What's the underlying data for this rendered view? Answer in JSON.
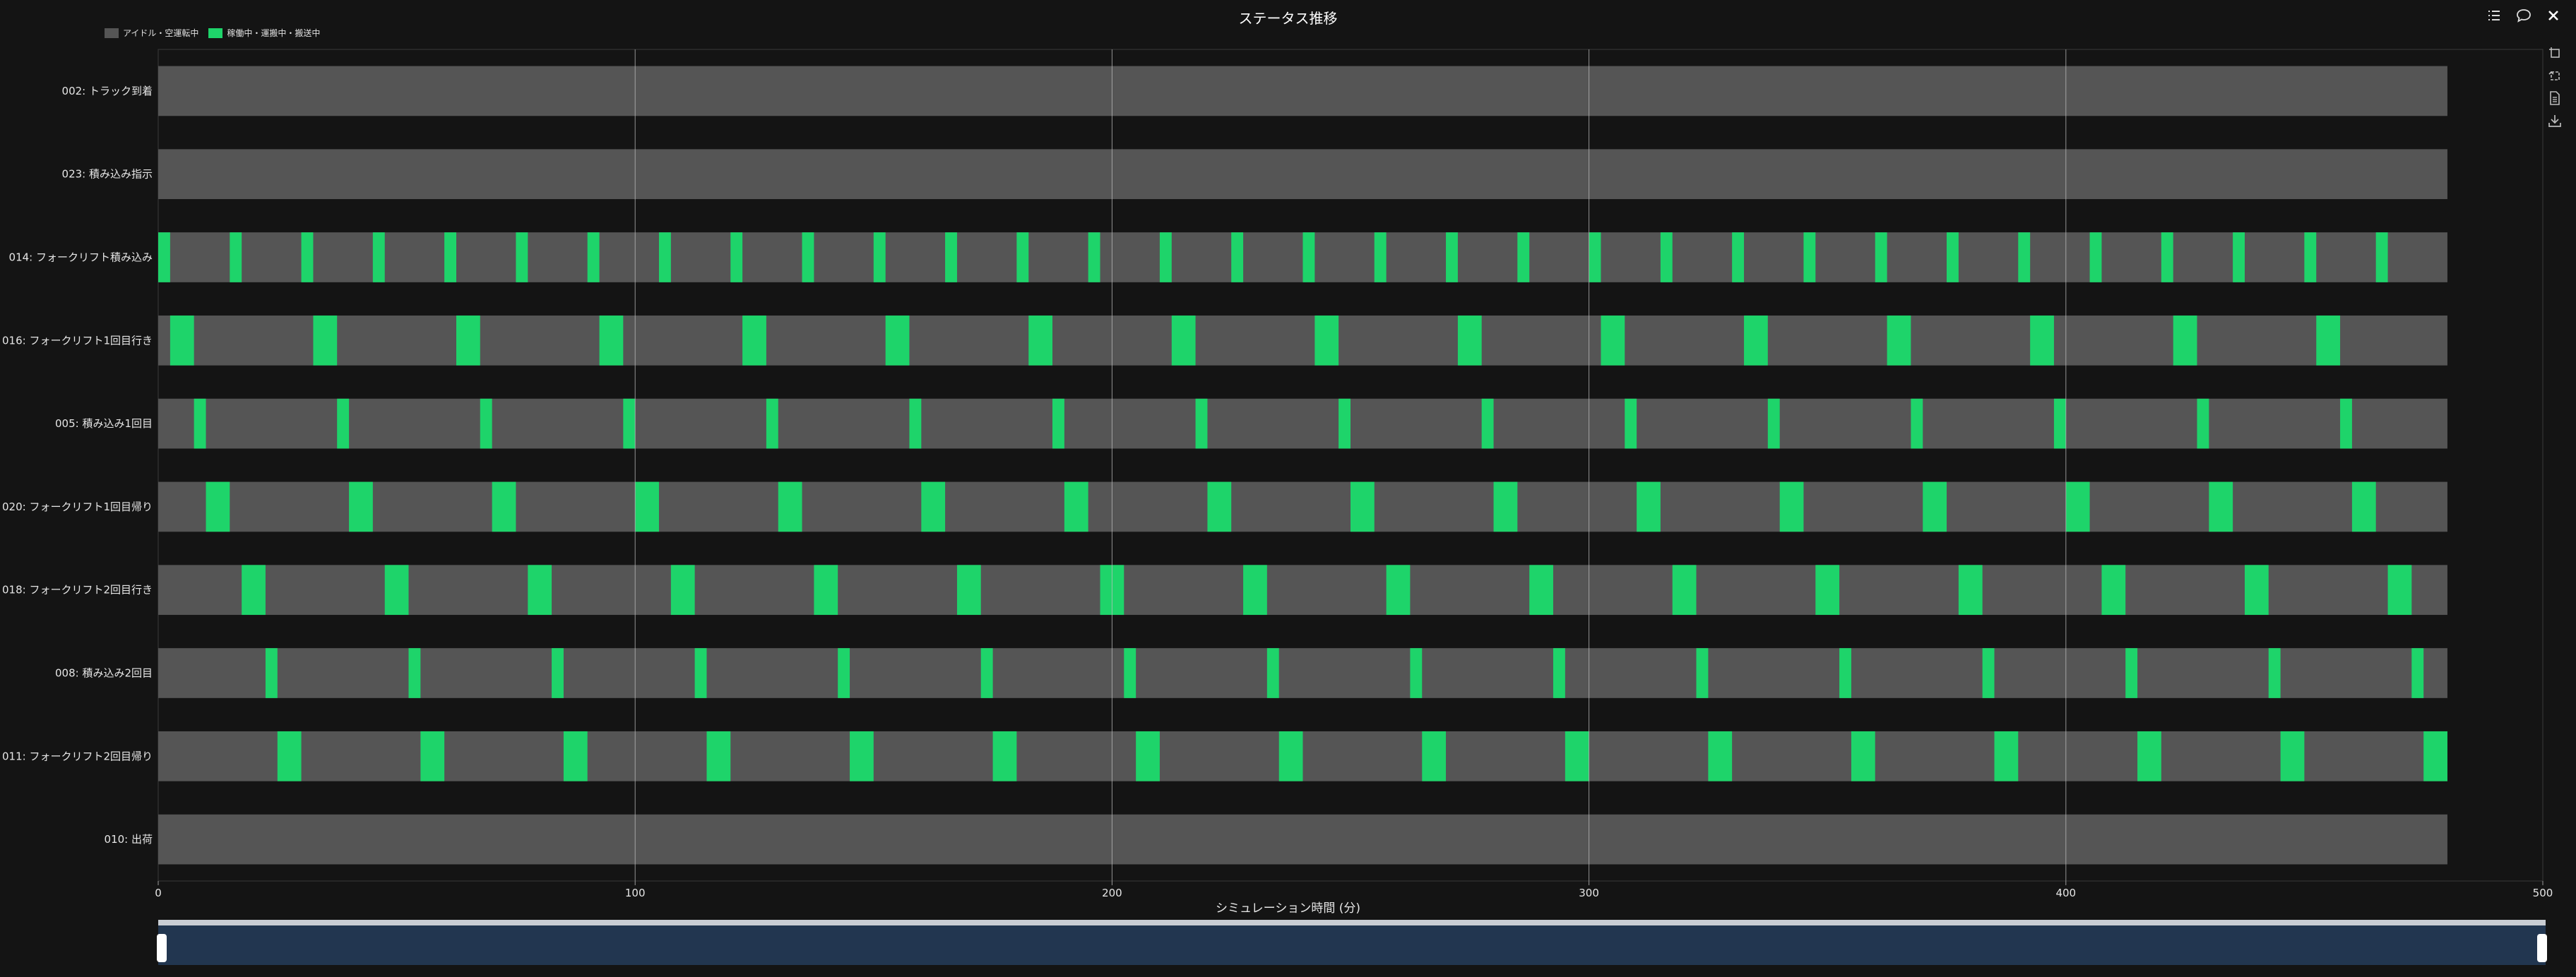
{
  "window": {
    "title": "ステータス推移"
  },
  "legend": [
    {
      "label": "アイドル・空運転中",
      "color": "#555555"
    },
    {
      "label": "稼働中・運搬中・搬送中",
      "color": "#1ed46a"
    }
  ],
  "icons": {
    "top": [
      "list-icon",
      "comment-icon",
      "close-icon"
    ],
    "side": [
      "select-icon",
      "lasso-icon",
      "document-icon",
      "download-icon"
    ]
  },
  "chart_data": {
    "type": "gantt",
    "title": "ステータス推移",
    "xlabel": "シミュレーション時間 (分)",
    "ylabel": "",
    "xlim": [
      0,
      500
    ],
    "xticks": [
      0,
      100,
      200,
      300,
      400,
      500
    ],
    "grid": "vertical",
    "legend_position": "top-left",
    "sim_end": 480,
    "rows": [
      {
        "label": "002: トラック到着",
        "active": []
      },
      {
        "label": "023: 積み込み指示",
        "active": []
      },
      {
        "label": "014: フォークリフト積み込み",
        "active": [
          [
            0,
            2.5
          ],
          [
            15,
            17.5
          ],
          [
            30,
            32.5
          ],
          [
            45,
            47.5
          ],
          [
            60,
            62.5
          ],
          [
            75,
            77.5
          ],
          [
            90,
            92.5
          ],
          [
            105,
            107.5
          ],
          [
            120,
            122.5
          ],
          [
            135,
            137.5
          ],
          [
            150,
            152.5
          ],
          [
            165,
            167.5
          ],
          [
            180,
            182.5
          ],
          [
            195,
            197.5
          ],
          [
            210,
            212.5
          ],
          [
            225,
            227.5
          ],
          [
            240,
            242.5
          ],
          [
            255,
            257.5
          ],
          [
            270,
            272.5
          ],
          [
            285,
            287.5
          ],
          [
            300,
            302.5
          ],
          [
            315,
            317.5
          ],
          [
            330,
            332.5
          ],
          [
            345,
            347.5
          ],
          [
            360,
            362.5
          ],
          [
            375,
            377.5
          ],
          [
            390,
            392.5
          ],
          [
            405,
            407.5
          ],
          [
            420,
            422.5
          ],
          [
            435,
            437.5
          ],
          [
            450,
            452.5
          ],
          [
            465,
            467.5
          ]
        ]
      },
      {
        "label": "016: フォークリフト1回目行き",
        "active": [
          [
            2.5,
            7.5
          ],
          [
            32.5,
            37.5
          ],
          [
            62.5,
            67.5
          ],
          [
            92.5,
            97.5
          ],
          [
            122.5,
            127.5
          ],
          [
            152.5,
            157.5
          ],
          [
            182.5,
            187.5
          ],
          [
            212.5,
            217.5
          ],
          [
            242.5,
            247.5
          ],
          [
            272.5,
            277.5
          ],
          [
            302.5,
            307.5
          ],
          [
            332.5,
            337.5
          ],
          [
            362.5,
            367.5
          ],
          [
            392.5,
            397.5
          ],
          [
            422.5,
            427.5
          ],
          [
            452.5,
            457.5
          ]
        ]
      },
      {
        "label": "005: 積み込み1回目",
        "active": [
          [
            7.5,
            10
          ],
          [
            37.5,
            40
          ],
          [
            67.5,
            70
          ],
          [
            97.5,
            100
          ],
          [
            127.5,
            130
          ],
          [
            157.5,
            160
          ],
          [
            187.5,
            190
          ],
          [
            217.5,
            220
          ],
          [
            247.5,
            250
          ],
          [
            277.5,
            280
          ],
          [
            307.5,
            310
          ],
          [
            337.5,
            340
          ],
          [
            367.5,
            370
          ],
          [
            397.5,
            400
          ],
          [
            427.5,
            430
          ],
          [
            457.5,
            460
          ]
        ]
      },
      {
        "label": "020: フォークリフト1回目帰り",
        "active": [
          [
            10,
            15
          ],
          [
            40,
            45
          ],
          [
            70,
            75
          ],
          [
            100,
            105
          ],
          [
            130,
            135
          ],
          [
            160,
            165
          ],
          [
            190,
            195
          ],
          [
            220,
            225
          ],
          [
            250,
            255
          ],
          [
            280,
            285
          ],
          [
            310,
            315
          ],
          [
            340,
            345
          ],
          [
            370,
            375
          ],
          [
            400,
            405
          ],
          [
            430,
            435
          ],
          [
            460,
            465
          ]
        ]
      },
      {
        "label": "018: フォークリフト2回目行き",
        "active": [
          [
            17.5,
            22.5
          ],
          [
            47.5,
            52.5
          ],
          [
            77.5,
            82.5
          ],
          [
            107.5,
            112.5
          ],
          [
            137.5,
            142.5
          ],
          [
            167.5,
            172.5
          ],
          [
            197.5,
            202.5
          ],
          [
            227.5,
            232.5
          ],
          [
            257.5,
            262.5
          ],
          [
            287.5,
            292.5
          ],
          [
            317.5,
            322.5
          ],
          [
            347.5,
            352.5
          ],
          [
            377.5,
            382.5
          ],
          [
            407.5,
            412.5
          ],
          [
            437.5,
            442.5
          ],
          [
            467.5,
            472.5
          ]
        ]
      },
      {
        "label": "008: 積み込み2回目",
        "active": [
          [
            22.5,
            25
          ],
          [
            52.5,
            55
          ],
          [
            82.5,
            85
          ],
          [
            112.5,
            115
          ],
          [
            142.5,
            145
          ],
          [
            172.5,
            175
          ],
          [
            202.5,
            205
          ],
          [
            232.5,
            235
          ],
          [
            262.5,
            265
          ],
          [
            292.5,
            295
          ],
          [
            322.5,
            325
          ],
          [
            352.5,
            355
          ],
          [
            382.5,
            385
          ],
          [
            412.5,
            415
          ],
          [
            442.5,
            445
          ],
          [
            472.5,
            475
          ]
        ]
      },
      {
        "label": "011: フォークリフト2回目帰り",
        "active": [
          [
            25,
            30
          ],
          [
            55,
            60
          ],
          [
            85,
            90
          ],
          [
            115,
            120
          ],
          [
            145,
            150
          ],
          [
            175,
            180
          ],
          [
            205,
            210
          ],
          [
            235,
            240
          ],
          [
            265,
            270
          ],
          [
            295,
            300
          ],
          [
            325,
            330
          ],
          [
            355,
            360
          ],
          [
            385,
            390
          ],
          [
            415,
            420
          ],
          [
            445,
            450
          ],
          [
            475,
            480
          ]
        ]
      },
      {
        "label": "010: 出荷",
        "active": []
      }
    ]
  }
}
